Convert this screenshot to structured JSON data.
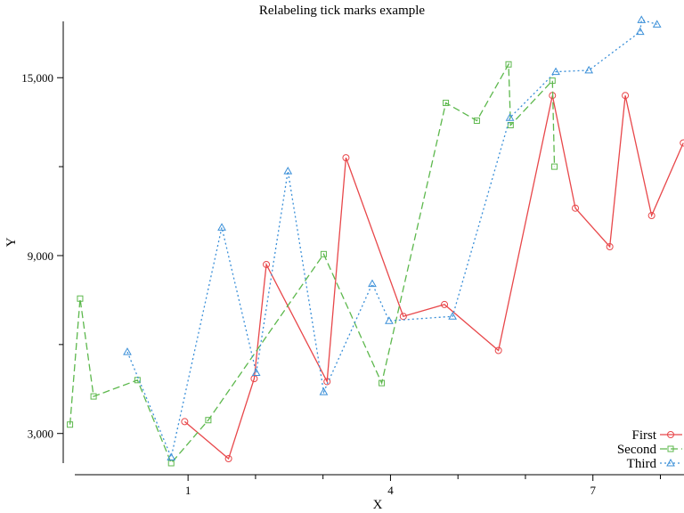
{
  "chart_data": {
    "type": "line",
    "title": "Relabeling tick marks example",
    "xlabel": "X",
    "ylabel": "Y",
    "xlim": [
      -0.85,
      8.35
    ],
    "ylim": [
      2000,
      16900
    ],
    "x_major_ticks": [
      1,
      4,
      7
    ],
    "x_major_tick_labels": [
      "1",
      "4",
      "7"
    ],
    "x_minor_ticks": [
      2,
      3,
      5,
      6,
      8
    ],
    "y_major_ticks": [
      3000,
      9000,
      15000
    ],
    "y_major_tick_labels": [
      "3,000",
      "9,000",
      "15,000"
    ],
    "y_minor_ticks": [
      6000,
      12000
    ],
    "legend_position": "bottom-right",
    "series": [
      {
        "name": "First",
        "color": "#e8474a",
        "marker": "circle",
        "dash": "solid",
        "x": [
          0.95,
          1.6,
          1.98,
          2.16,
          3.06,
          3.34,
          4.19,
          4.8,
          5.6,
          6.4,
          6.74,
          7.25,
          7.48,
          7.87,
          8.34
        ],
        "y": [
          3400,
          2150,
          4850,
          8700,
          4750,
          12300,
          6950,
          7350,
          5800,
          14400,
          10600,
          9300,
          14400,
          10350,
          12800
        ]
      },
      {
        "name": "Second",
        "color": "#5db84d",
        "marker": "square",
        "dash": "dashed",
        "x": [
          -0.75,
          -0.6,
          -0.4,
          0.25,
          0.75,
          1.3,
          3.01,
          3.87,
          4.82,
          5.28,
          5.75,
          5.78,
          6.4,
          6.43
        ],
        "y": [
          3300,
          7550,
          4250,
          4800,
          2000,
          3450,
          9050,
          4700,
          14150,
          13550,
          15450,
          13400,
          14900,
          12000
        ]
      },
      {
        "name": "Third",
        "color": "#3a8fd8",
        "marker": "triangle",
        "dash": "dotted",
        "x": [
          0.1,
          0.75,
          1.5,
          2.01,
          2.48,
          3.01,
          3.73,
          3.98,
          4.92,
          5.77,
          6.45,
          6.94,
          7.7,
          7.72,
          7.95
        ],
        "y": [
          5750,
          2200,
          9950,
          5050,
          11850,
          4400,
          8050,
          6800,
          6950,
          13650,
          15200,
          15250,
          16550,
          16950,
          16800
        ]
      }
    ]
  }
}
